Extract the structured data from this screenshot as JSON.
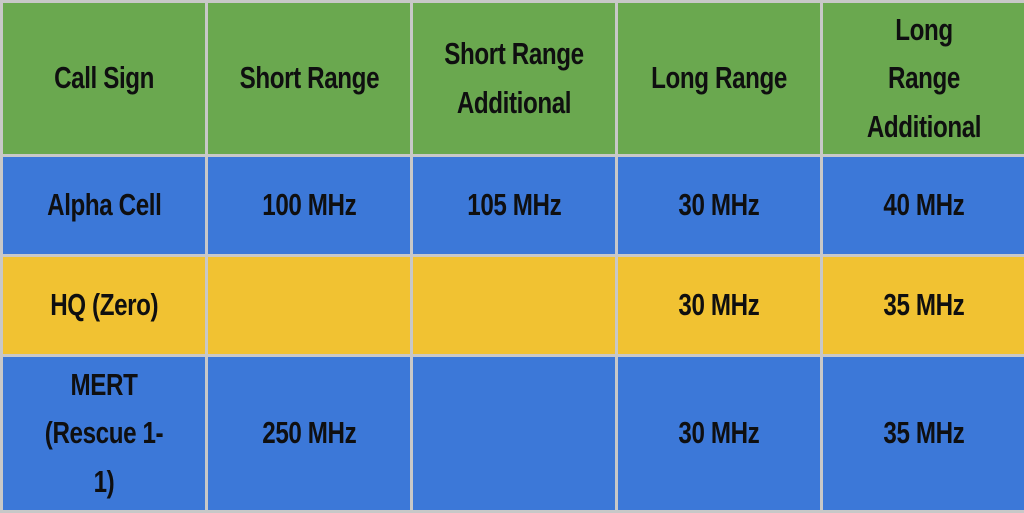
{
  "table": {
    "headers": [
      "Call Sign",
      "Short Range",
      "Short Range Additional",
      "Long Range",
      "Long Range Additional"
    ],
    "rows": [
      {
        "cells": [
          "Alpha Cell",
          "100 MHz",
          "105 MHz",
          "30 MHz",
          "40 MHz"
        ],
        "color": "#3c78d8"
      },
      {
        "cells": [
          "HQ (Zero)",
          "",
          "",
          "30 MHz",
          "35 MHz"
        ],
        "color": "#f1c232"
      },
      {
        "cells": [
          "MERT (Rescue 1-1)",
          "250 MHz",
          "",
          "30 MHz",
          "35 MHz"
        ],
        "color": "#3c78d8"
      }
    ],
    "header_color": "#6aa84f"
  }
}
